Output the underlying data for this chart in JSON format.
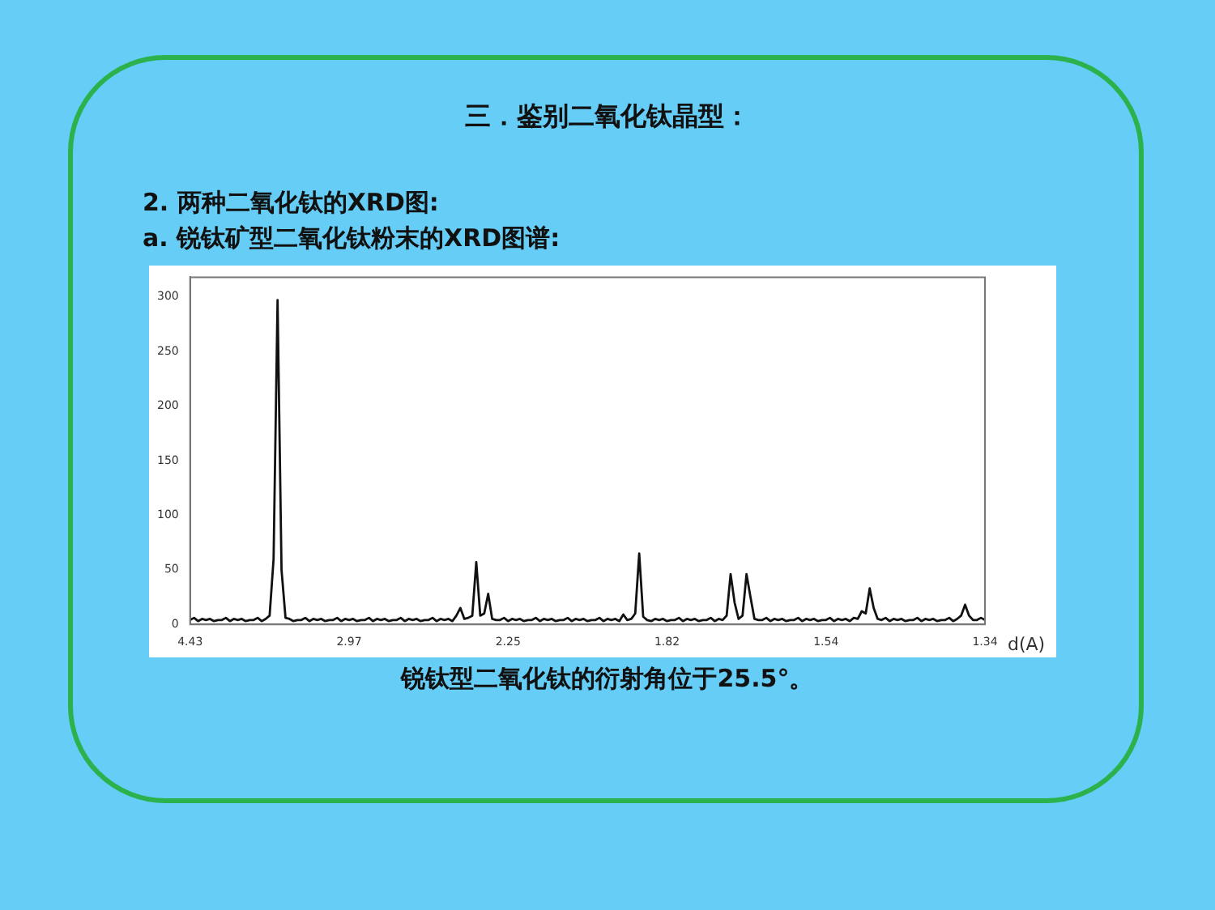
{
  "chart_data": {
    "type": "line",
    "title": "三．鉴别二氧化钛晶型：",
    "annotations": [
      "2. 两种二氧化钛的XRD图:",
      "a. 锐钛矿型二氧化钛粉末的XRD图谱:",
      "锐钛型二氧化钛的衍射角位于25.5°。"
    ],
    "xlabel": "d(A)",
    "categories": [
      "4.43",
      null,
      null,
      null,
      null,
      null,
      null,
      null,
      null,
      null,
      null,
      null,
      null,
      null,
      null,
      null,
      null,
      null,
      null,
      null,
      null,
      null,
      null,
      null,
      null,
      null,
      null,
      null,
      null,
      null,
      null,
      null,
      null,
      null,
      null,
      null,
      null,
      null,
      null,
      null,
      "2.97",
      null,
      null,
      null,
      null,
      null,
      null,
      null,
      null,
      null,
      null,
      null,
      null,
      null,
      null,
      null,
      null,
      null,
      null,
      null,
      null,
      null,
      null,
      null,
      null,
      null,
      null,
      null,
      null,
      null,
      null,
      null,
      null,
      null,
      null,
      null,
      null,
      null,
      null,
      null,
      "2.25",
      null,
      null,
      null,
      null,
      null,
      null,
      null,
      null,
      null,
      null,
      null,
      null,
      null,
      null,
      null,
      null,
      null,
      null,
      null,
      null,
      null,
      null,
      null,
      null,
      null,
      null,
      null,
      null,
      null,
      null,
      null,
      null,
      null,
      null,
      null,
      null,
      null,
      null,
      null,
      "1.82",
      null,
      null,
      null,
      null,
      null,
      null,
      null,
      null,
      null,
      null,
      null,
      null,
      null,
      null,
      null,
      null,
      null,
      null,
      null,
      null,
      null,
      null,
      null,
      null,
      null,
      null,
      null,
      null,
      null,
      null,
      null,
      null,
      null,
      null,
      null,
      null,
      null,
      null,
      null,
      "1.54",
      null,
      null,
      null,
      null,
      null,
      null,
      null,
      null,
      null,
      null,
      null,
      null,
      null,
      null,
      null,
      null,
      null,
      null,
      null,
      null,
      null,
      null,
      null,
      null,
      null,
      null,
      null,
      null,
      null,
      null,
      null,
      null,
      null,
      null,
      null,
      null,
      null,
      null,
      null,
      "1.34"
    ],
    "series": [
      {
        "color": "#111111",
        "values": [
          4,
          6,
          3,
          5,
          4,
          5,
          3,
          4,
          4,
          6,
          3,
          5,
          4,
          5,
          3,
          4,
          4,
          6,
          3,
          5,
          8,
          60,
          297,
          50,
          6,
          5,
          3,
          4,
          4,
          6,
          3,
          5,
          4,
          5,
          3,
          4,
          4,
          6,
          3,
          5,
          4,
          5,
          3,
          4,
          4,
          6,
          3,
          5,
          4,
          5,
          3,
          4,
          4,
          6,
          3,
          5,
          4,
          5,
          3,
          4,
          4,
          6,
          3,
          5,
          4,
          5,
          3,
          8,
          15,
          5,
          6,
          8,
          57,
          8,
          10,
          28,
          5,
          4,
          4,
          6,
          3,
          5,
          4,
          5,
          3,
          4,
          4,
          6,
          3,
          5,
          4,
          5,
          3,
          4,
          4,
          6,
          3,
          5,
          4,
          5,
          3,
          4,
          4,
          6,
          3,
          5,
          4,
          5,
          3,
          9,
          4,
          5,
          10,
          65,
          7,
          4,
          3,
          5,
          4,
          5,
          3,
          4,
          4,
          6,
          3,
          5,
          4,
          5,
          3,
          4,
          4,
          6,
          3,
          5,
          4,
          8,
          46,
          20,
          5,
          8,
          46,
          25,
          5,
          4,
          4,
          6,
          3,
          5,
          4,
          5,
          3,
          4,
          4,
          6,
          3,
          5,
          4,
          5,
          3,
          4,
          4,
          6,
          3,
          5,
          4,
          5,
          3,
          6,
          5,
          12,
          10,
          33,
          15,
          5,
          4,
          6,
          3,
          5,
          4,
          5,
          3,
          4,
          4,
          6,
          3,
          5,
          4,
          5,
          3,
          4,
          4,
          6,
          3,
          5,
          8,
          18,
          8,
          4,
          4,
          6,
          4
        ]
      }
    ],
    "ylim": [
      0,
      318
    ],
    "yticks": [
      0,
      50,
      100,
      150,
      200,
      250,
      300
    ],
    "marker": "none",
    "line_style": "solid",
    "grid": false,
    "legend": false
  }
}
